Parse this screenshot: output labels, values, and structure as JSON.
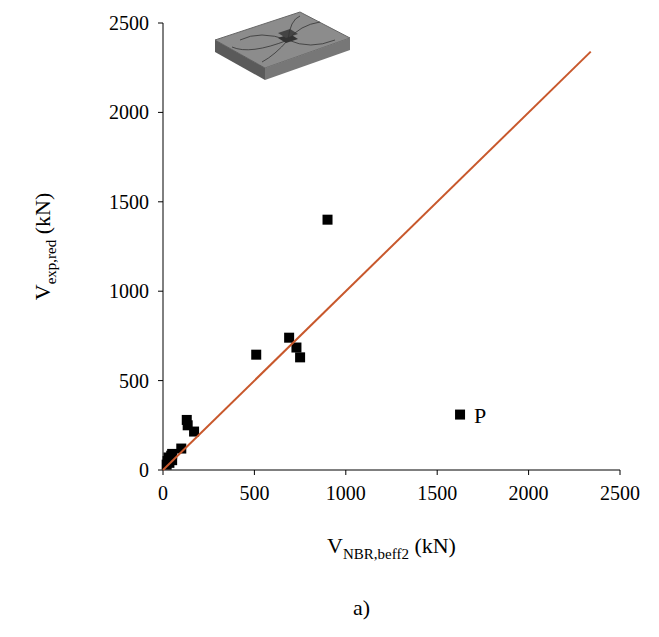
{
  "chart_data": {
    "type": "scatter",
    "caption": "a)",
    "xlabel": {
      "text": "V",
      "sub": "NBR,beff2",
      "after": " (kN)"
    },
    "ylabel": {
      "text": "V",
      "sub": "exp,red",
      "after": " (kN)"
    },
    "xlim": [
      0,
      2500
    ],
    "ylim": [
      0,
      2500
    ],
    "xticks": [
      0,
      500,
      1000,
      1500,
      2000,
      2500
    ],
    "yticks": [
      0,
      500,
      1000,
      1500,
      2000,
      2500
    ],
    "grid": false,
    "series": [
      {
        "type": "scatter",
        "marker": "square",
        "color": "#000000",
        "x": [
          20,
          25,
          30,
          35,
          40,
          45,
          50,
          50,
          100,
          130,
          135,
          170,
          510,
          690,
          730,
          750,
          900,
          1625
        ],
        "values": [
          30,
          50,
          70,
          40,
          60,
          80,
          90,
          55,
          120,
          280,
          250,
          215,
          645,
          740,
          685,
          630,
          1400,
          310
        ]
      },
      {
        "type": "line",
        "line_style": "solid",
        "color": "#c8582c",
        "x": [
          0,
          2340
        ],
        "values": [
          0,
          2340
        ]
      }
    ],
    "annotations": [
      {
        "text": "P",
        "x": 1625,
        "y": 310
      }
    ]
  }
}
